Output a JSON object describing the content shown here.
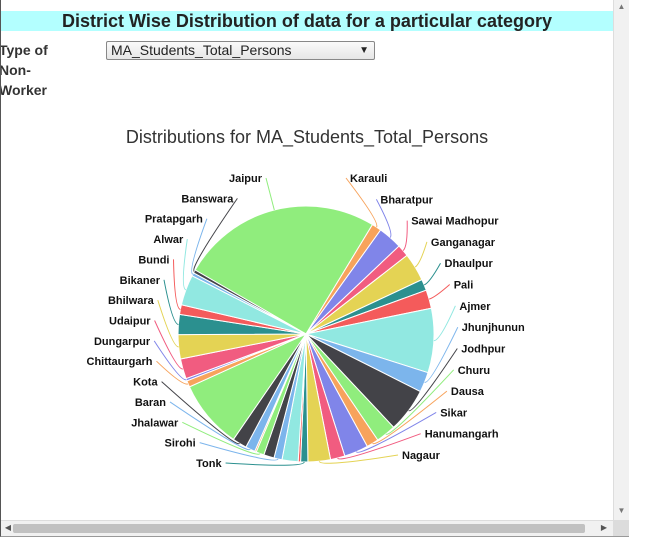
{
  "header": {
    "title": "District Wise Distribution of data for a particular category"
  },
  "filter": {
    "label": "Type of Non-Worker",
    "selected": "MA_Students_Total_Persons",
    "arrow": "▼"
  },
  "scrollbars": {
    "up": "▲",
    "down": "▼",
    "left": "◀",
    "right": "▶"
  },
  "chart_data": {
    "type": "pie",
    "title": "Distributions for MA_Students_Total_Persons",
    "slices": [
      {
        "label": "Jaipur",
        "value": 25.0,
        "color": "#90ed7d"
      },
      {
        "label": "Karauli",
        "value": 1.2,
        "color": "#f7a35c"
      },
      {
        "label": "Bharatpur",
        "value": 3.0,
        "color": "#8085e9"
      },
      {
        "label": "Sawai Madhopur",
        "value": 1.5,
        "color": "#f15c80"
      },
      {
        "label": "Ganganagar",
        "value": 3.5,
        "color": "#e4d354"
      },
      {
        "label": "Dhaulpur",
        "value": 1.4,
        "color": "#2b908f"
      },
      {
        "label": "Pali",
        "value": 2.3,
        "color": "#f45b5b"
      },
      {
        "label": "Ajmer",
        "value": 8.0,
        "color": "#91e8e1"
      },
      {
        "label": "Jhunjhunun",
        "value": 2.5,
        "color": "#7cb5ec"
      },
      {
        "label": "Jodhpur",
        "value": 5.5,
        "color": "#434348"
      },
      {
        "label": "Churu",
        "value": 2.5,
        "color": "#90ed7d"
      },
      {
        "label": "Dausa",
        "value": 1.5,
        "color": "#f7a35c"
      },
      {
        "label": "Sikar",
        "value": 3.0,
        "color": "#8085e9"
      },
      {
        "label": "Hanumangarh",
        "value": 1.8,
        "color": "#f15c80"
      },
      {
        "label": "Nagaur",
        "value": 2.8,
        "color": "#e4d354"
      },
      {
        "label": "Tonk",
        "value": 0.9,
        "color": "#2b908f"
      },
      {
        "label": "",
        "value": 0.3,
        "color": "#f45b5b"
      },
      {
        "label": "",
        "value": 2.0,
        "color": "#91e8e1"
      },
      {
        "label": "Sirohi",
        "value": 1.0,
        "color": "#7cb5ec"
      },
      {
        "label": "",
        "value": 1.3,
        "color": "#434348"
      },
      {
        "label": "Jhalawar",
        "value": 1.0,
        "color": "#90ed7d"
      },
      {
        "label": "",
        "value": 0.2,
        "color": "#f7a35c"
      },
      {
        "label": "Baran",
        "value": 1.2,
        "color": "#7cb5ec"
      },
      {
        "label": "Kota",
        "value": 1.8,
        "color": "#434348"
      },
      {
        "label": "",
        "value": 8.5,
        "color": "#90ed7d"
      },
      {
        "label": "Chittaurgarh",
        "value": 0.8,
        "color": "#f7a35c"
      },
      {
        "label": "Dungarpur",
        "value": 0.3,
        "color": "#8085e9"
      },
      {
        "label": "Udaipur",
        "value": 2.5,
        "color": "#f15c80"
      },
      {
        "label": "Bhilwara",
        "value": 3.0,
        "color": "#e4d354"
      },
      {
        "label": "Bikaner",
        "value": 2.5,
        "color": "#2b908f"
      },
      {
        "label": "Bundi",
        "value": 1.2,
        "color": "#f45b5b"
      },
      {
        "label": "Alwar",
        "value": 3.8,
        "color": "#91e8e1"
      },
      {
        "label": "Pratapgarh",
        "value": 0.4,
        "color": "#7cb5ec"
      },
      {
        "label": "Banswara",
        "value": 0.4,
        "color": "#434348"
      }
    ]
  }
}
